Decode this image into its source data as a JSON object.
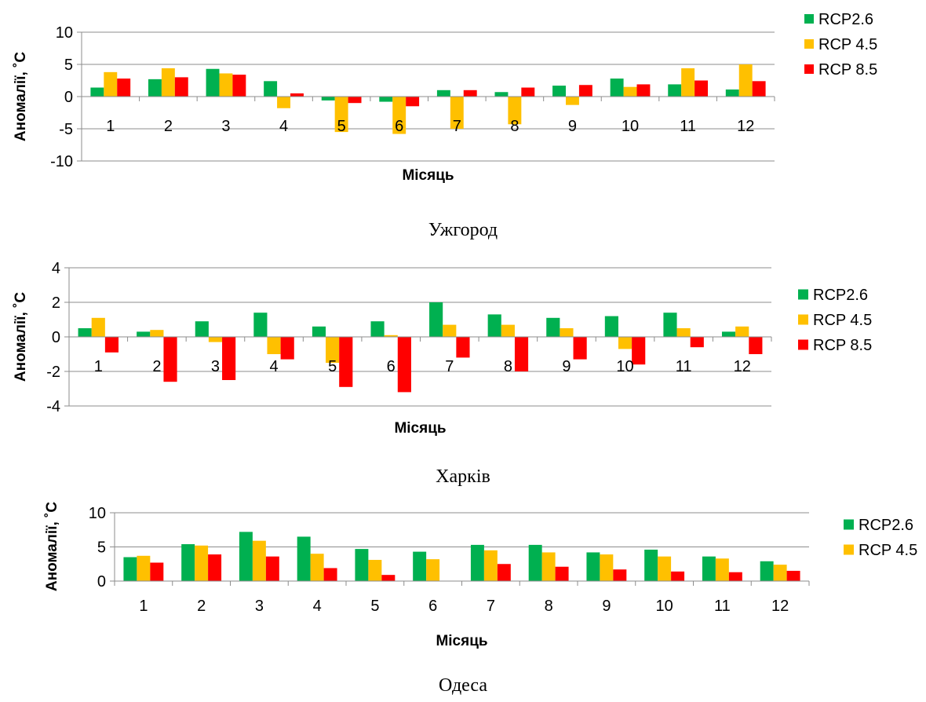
{
  "chart_data": [
    {
      "type": "bar",
      "title": "Ужгород",
      "xlabel": "Місяць",
      "ylabel": "Аномалії, ˚С",
      "ylim": [
        -10,
        10
      ],
      "yticks": [
        "10",
        "5",
        "0",
        "-5",
        "-10"
      ],
      "categories": [
        "1",
        "2",
        "3",
        "4",
        "5",
        "6",
        "7",
        "8",
        "9",
        "10",
        "11",
        "12"
      ],
      "grid": true,
      "legend_position": "top-right",
      "series": [
        {
          "name": "RCP2.6",
          "color": "#00B050",
          "values": [
            1.4,
            2.7,
            4.3,
            2.4,
            -0.6,
            -0.8,
            1.0,
            0.7,
            1.7,
            2.8,
            1.9,
            1.1
          ]
        },
        {
          "name": "RCP 4.5",
          "color": "#FFC000",
          "values": [
            3.8,
            4.4,
            3.6,
            -1.8,
            -5.5,
            -5.8,
            -5.0,
            -4.3,
            -1.3,
            1.5,
            4.4,
            5.0
          ]
        },
        {
          "name": "RCP 8.5",
          "color": "#FF0000",
          "values": [
            2.8,
            3.0,
            3.4,
            0.5,
            -1.0,
            -1.5,
            1.0,
            1.4,
            1.8,
            1.9,
            2.5,
            2.4
          ]
        }
      ]
    },
    {
      "type": "bar",
      "title": "Харків",
      "xlabel": "Місяць",
      "ylabel": "Аномалії, ˚С",
      "ylim": [
        -4,
        4
      ],
      "yticks": [
        "4",
        "2",
        "0",
        "-2",
        "-4"
      ],
      "categories": [
        "1",
        "2",
        "3",
        "4",
        "5",
        "6",
        "7",
        "8",
        "9",
        "10",
        "11",
        "12"
      ],
      "grid": true,
      "legend_position": "right",
      "series": [
        {
          "name": "RCP2.6",
          "color": "#00B050",
          "values": [
            0.5,
            0.3,
            0.9,
            1.4,
            0.6,
            0.9,
            2.0,
            1.3,
            1.1,
            1.2,
            1.4,
            0.3
          ]
        },
        {
          "name": "RCP 4.5",
          "color": "#FFC000",
          "values": [
            1.1,
            0.4,
            -0.3,
            -1.0,
            -1.5,
            0.1,
            0.7,
            0.7,
            0.5,
            -0.7,
            0.5,
            0.6
          ]
        },
        {
          "name": "RCP 8.5",
          "color": "#FF0000",
          "values": [
            -0.9,
            -2.6,
            -2.5,
            -1.3,
            -2.9,
            -3.2,
            -1.2,
            -2.0,
            -1.3,
            -1.6,
            -0.6,
            -1.0
          ]
        }
      ]
    },
    {
      "type": "bar",
      "title": "Одеса",
      "xlabel": "Місяць",
      "ylabel": "Аномалії, ˚С",
      "ylim": [
        0,
        10
      ],
      "yticks": [
        "10",
        "5",
        "0"
      ],
      "categories": [
        "1",
        "2",
        "3",
        "4",
        "5",
        "6",
        "7",
        "8",
        "9",
        "10",
        "11",
        "12"
      ],
      "grid": true,
      "legend_position": "top-right",
      "series": [
        {
          "name": "RCP2.6",
          "color": "#00B050",
          "values": [
            3.5,
            5.4,
            7.2,
            6.5,
            4.7,
            4.3,
            5.3,
            5.3,
            4.2,
            4.6,
            3.6,
            2.9
          ]
        },
        {
          "name": "RCP 4.5",
          "color": "#FFC000",
          "values": [
            3.7,
            5.2,
            5.9,
            4.0,
            3.1,
            3.2,
            4.5,
            4.2,
            3.9,
            3.6,
            3.3,
            2.4
          ]
        },
        {
          "name": "",
          "color": "#FF0000",
          "values": [
            2.7,
            3.9,
            3.6,
            1.9,
            0.9,
            0.0,
            2.5,
            2.1,
            1.7,
            1.4,
            1.3,
            1.5
          ]
        }
      ]
    }
  ]
}
